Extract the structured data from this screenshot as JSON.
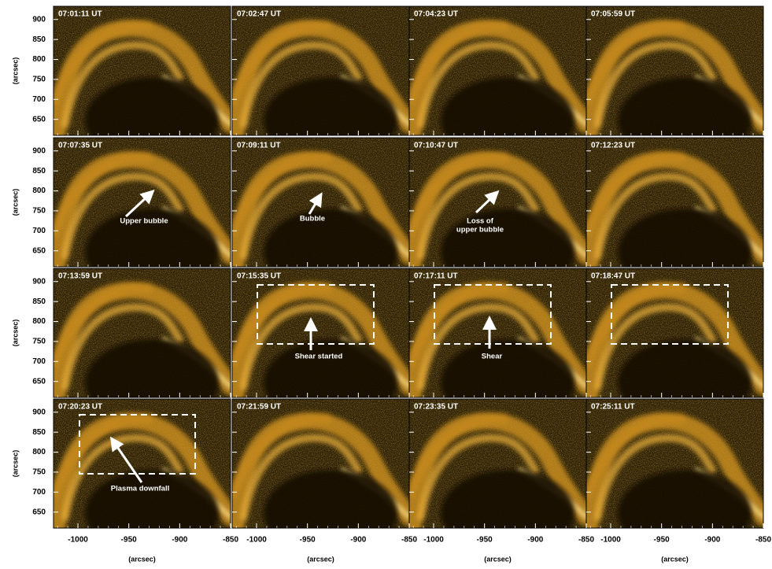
{
  "figure": {
    "axes": {
      "x_label": "(arcsec)",
      "y_label": "(arcsec)",
      "xticks": [
        -1000,
        -950,
        -900,
        -850
      ],
      "yticks": [
        900,
        850,
        800,
        750,
        700,
        650
      ],
      "xlim": [
        -1024,
        -850
      ],
      "ylim": [
        610,
        933
      ]
    },
    "panels": [
      {
        "time": "07:01:11 UT"
      },
      {
        "time": "07:02:47 UT"
      },
      {
        "time": "07:04:23 UT"
      },
      {
        "time": "07:05:59 UT"
      },
      {
        "time": "07:07:35 UT",
        "annotation": [
          "Upper bubble"
        ]
      },
      {
        "time": "07:09:11 UT",
        "annotation": [
          "Bubble"
        ]
      },
      {
        "time": "07:10:47 UT",
        "annotation": [
          "Loss of",
          "upper bubble"
        ]
      },
      {
        "time": "07:12:23 UT"
      },
      {
        "time": "07:13:59 UT"
      },
      {
        "time": "07:15:35 UT",
        "annotation": [
          "Shear started"
        ]
      },
      {
        "time": "07:17:11 UT",
        "annotation": [
          "Shear"
        ]
      },
      {
        "time": "07:18:47 UT"
      },
      {
        "time": "07:20:23 UT",
        "annotation": [
          "Plasma downfall"
        ]
      },
      {
        "time": "07:21:59 UT"
      },
      {
        "time": "07:23:35 UT"
      },
      {
        "time": "07:25:11 UT"
      }
    ]
  }
}
